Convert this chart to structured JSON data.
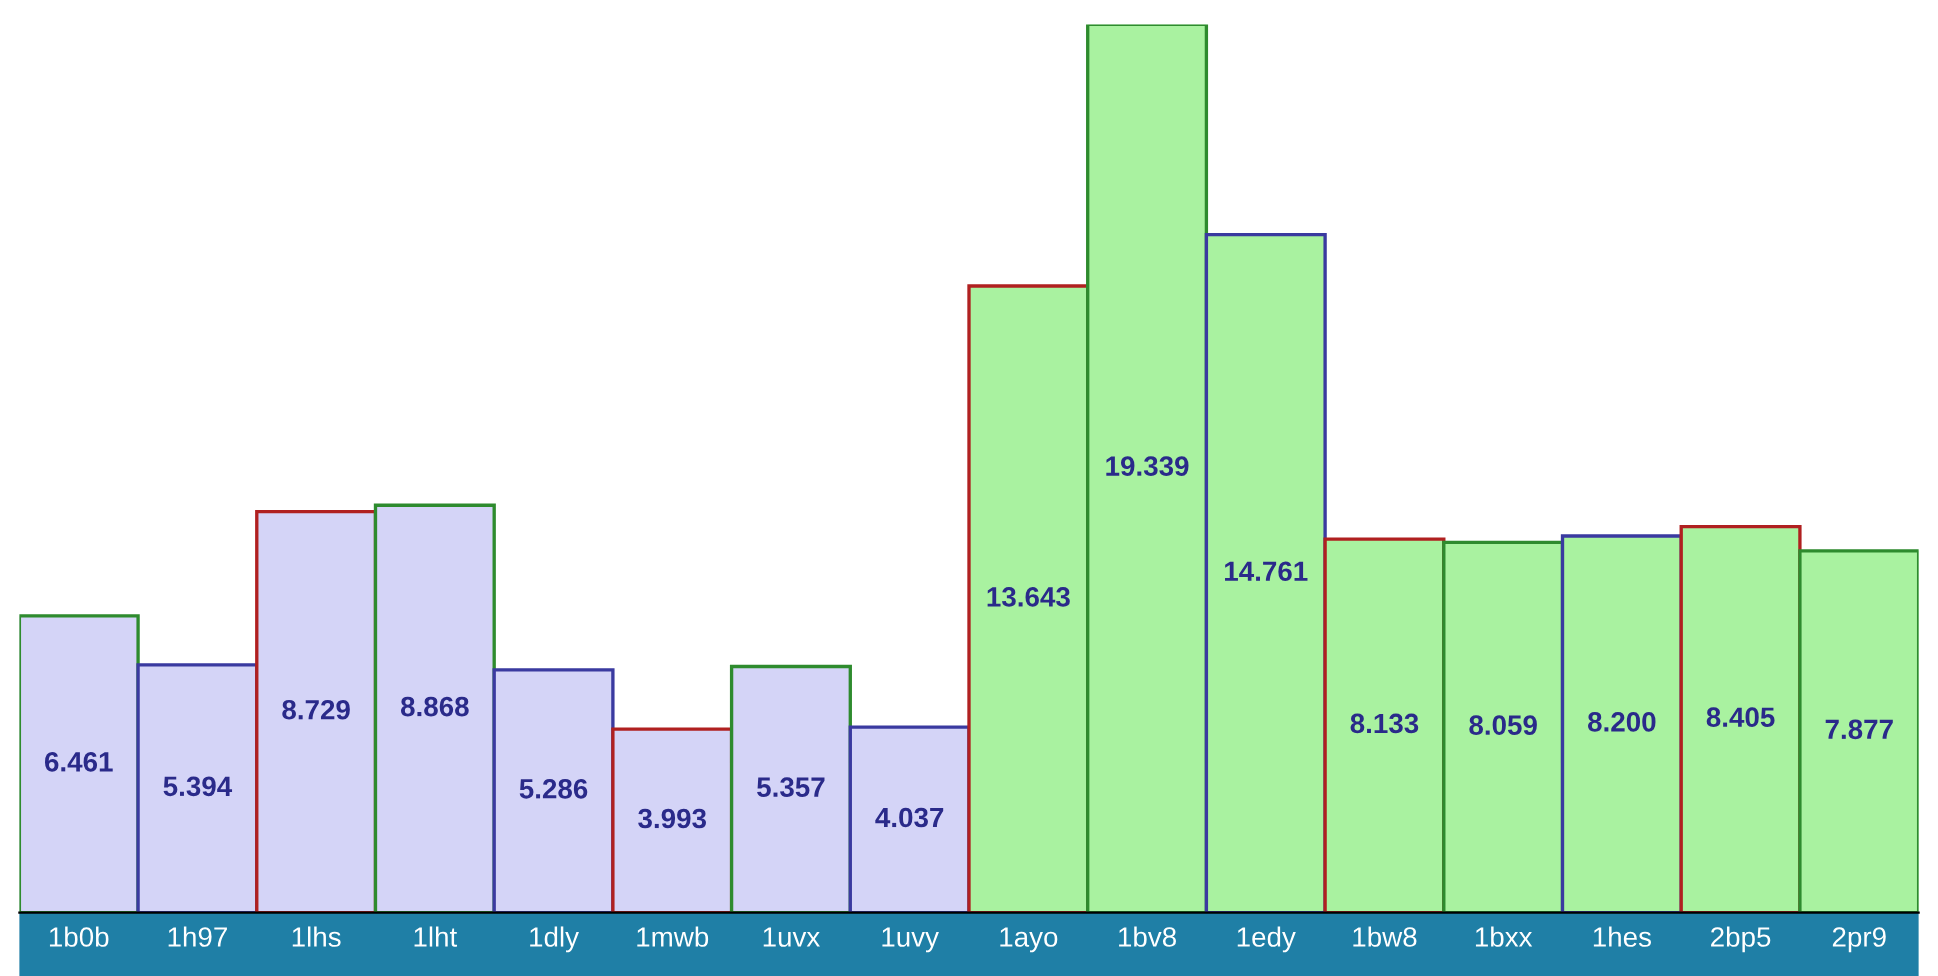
{
  "chart_data": {
    "type": "bar",
    "categories": [
      "1b0b",
      "1h97",
      "1lhs",
      "1lht",
      "1dly",
      "1mwb",
      "1uvx",
      "1uvy",
      "1ayo",
      "1bv8",
      "1edy",
      "1bw8",
      "1bxx",
      "1hes",
      "2bp5",
      "2pr9"
    ],
    "values": [
      6.461,
      5.394,
      8.729,
      8.868,
      5.286,
      3.993,
      5.357,
      4.037,
      13.643,
      19.339,
      14.761,
      8.133,
      8.059,
      8.2,
      8.405,
      7.877
    ],
    "value_labels": [
      "6.461",
      "5.394",
      "8.729",
      "8.868",
      "5.286",
      "3.993",
      "5.357",
      "4.037",
      "13.643",
      "19.339",
      "14.761",
      "8.133",
      "8.059",
      "8.200",
      "8.405",
      "7.877"
    ],
    "colors": [
      "#d4d4f7",
      "#d4d4f7",
      "#d4d4f7",
      "#d4d4f7",
      "#d4d4f7",
      "#d4d4f7",
      "#d4d4f7",
      "#d4d4f7",
      "#a9f2a0",
      "#a9f2a0",
      "#a9f2a0",
      "#a9f2a0",
      "#a9f2a0",
      "#a9f2a0",
      "#a9f2a0",
      "#a9f2a0"
    ],
    "grid": false,
    "legend": false
  }
}
